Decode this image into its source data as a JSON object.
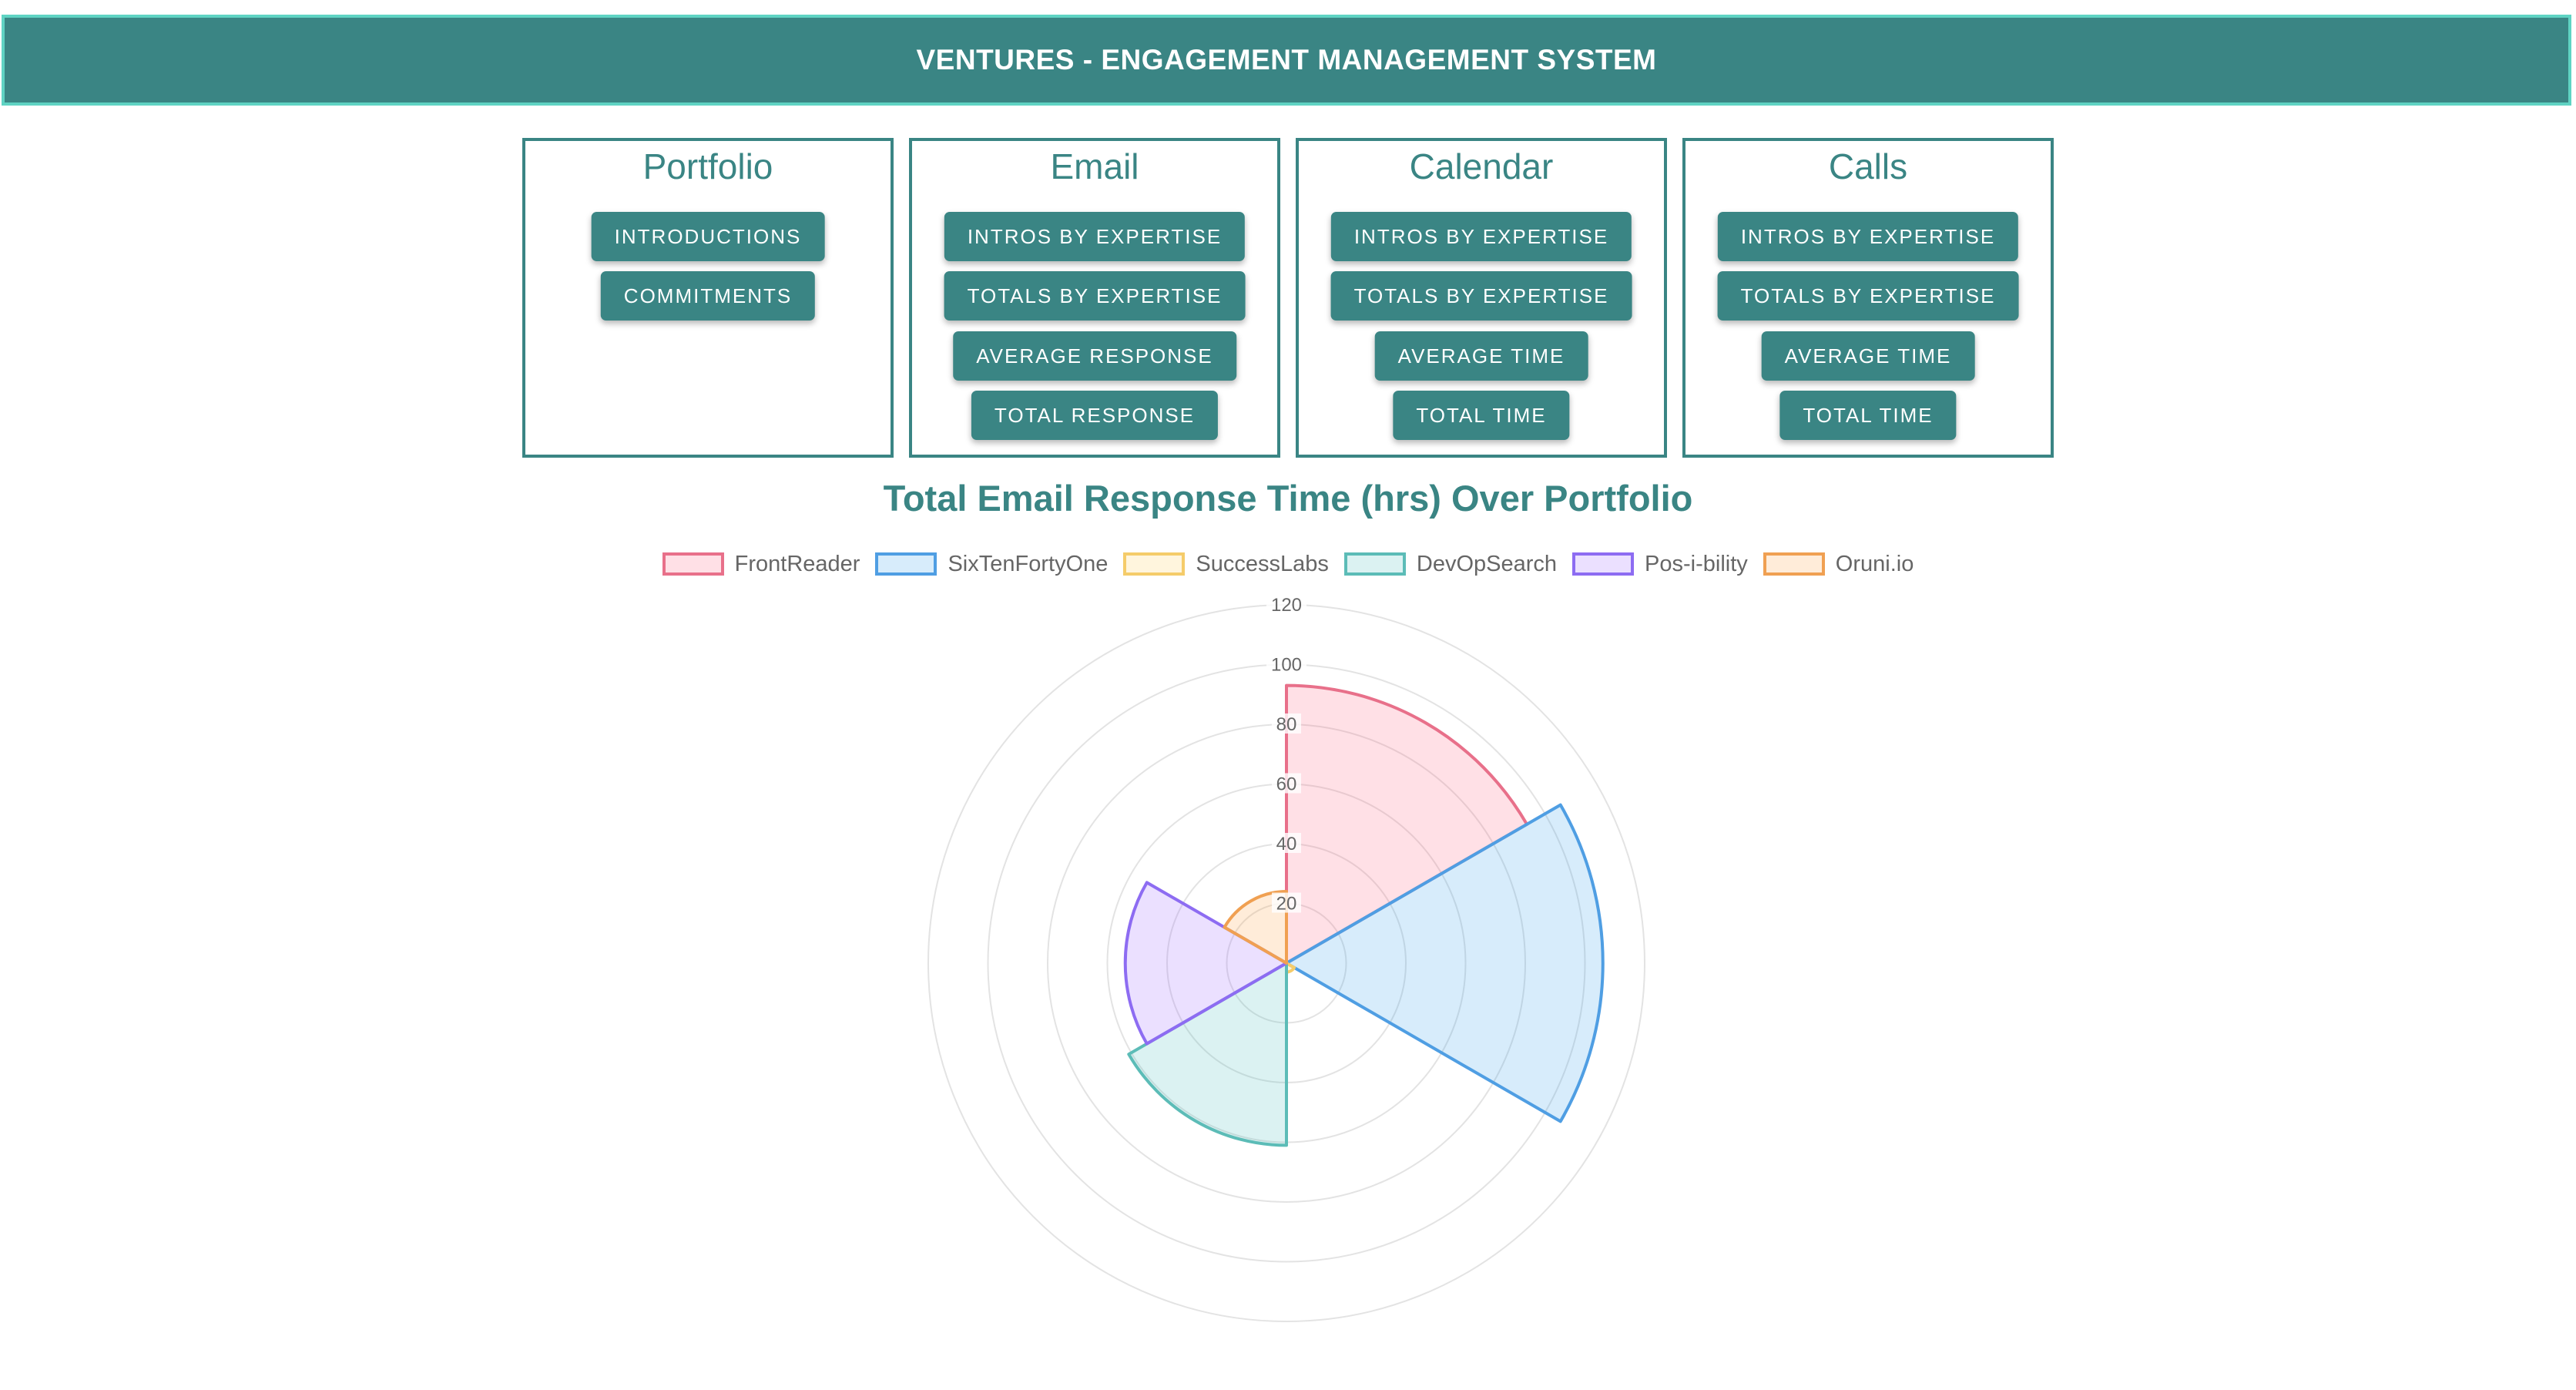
{
  "header": {
    "title": "VENTURES - ENGAGEMENT MANAGEMENT SYSTEM"
  },
  "panels": [
    {
      "title": "Portfolio",
      "buttons": [
        "INTRODUCTIONS",
        "COMMITMENTS"
      ]
    },
    {
      "title": "Email",
      "buttons": [
        "INTROS BY EXPERTISE",
        "TOTALS BY EXPERTISE",
        "AVERAGE RESPONSE",
        "TOTAL RESPONSE"
      ]
    },
    {
      "title": "Calendar",
      "buttons": [
        "INTROS BY EXPERTISE",
        "TOTALS BY EXPERTISE",
        "AVERAGE TIME",
        "TOTAL TIME"
      ]
    },
    {
      "title": "Calls",
      "buttons": [
        "INTROS BY EXPERTISE",
        "TOTALS BY EXPERTISE",
        "AVERAGE TIME",
        "TOTAL TIME"
      ]
    }
  ],
  "colors": {
    "accent": "#3a8584",
    "header_border": "#5fd3c3"
  },
  "chart_data": {
    "type": "polarArea",
    "title": "Total Email Response Time (hrs) Over Portfolio",
    "categories": [
      "FrontReader",
      "SixTenFortyOne",
      "SuccessLabs",
      "DevOpSearch",
      "Pos-i-bility",
      "Oruni.io"
    ],
    "values": [
      93,
      106,
      3,
      61,
      54,
      24
    ],
    "r_ticks": [
      "20",
      "40",
      "60",
      "80",
      "100",
      "120"
    ],
    "r_range": [
      0,
      120
    ],
    "grid": true,
    "legend_position": "top",
    "series_colors": [
      {
        "border": "#e8708a",
        "fill": "rgba(255,99,132,0.2)"
      },
      {
        "border": "#4f9ee3",
        "fill": "rgba(54,162,235,0.2)"
      },
      {
        "border": "#f5cc6a",
        "fill": "rgba(255,206,86,0.2)"
      },
      {
        "border": "#5cbcb7",
        "fill": "rgba(75,192,192,0.2)"
      },
      {
        "border": "#8d6cf2",
        "fill": "rgba(153,102,255,0.2)"
      },
      {
        "border": "#f0a052",
        "fill": "rgba(255,159,64,0.2)"
      }
    ]
  }
}
